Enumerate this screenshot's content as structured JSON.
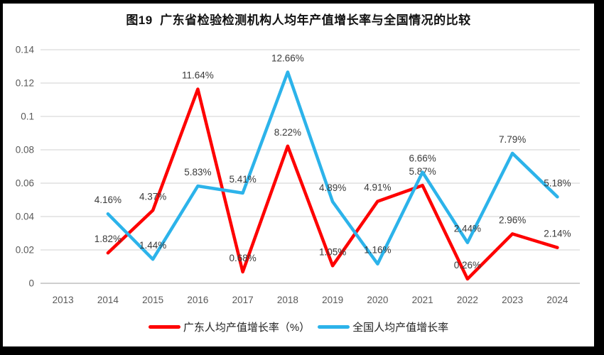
{
  "title": "图19  广东省检验检测机构人均年产值增长率与全国情况的比较",
  "chart_data": {
    "type": "line",
    "categories": [
      "2013",
      "2014",
      "2015",
      "2016",
      "2017",
      "2018",
      "2019",
      "2020",
      "2021",
      "2022",
      "2023",
      "2024"
    ],
    "ylim": [
      0,
      0.14
    ],
    "ytick_step": 0.02,
    "ytick_labels": [
      "0",
      "0.02",
      "0.04",
      "0.06",
      "0.08",
      "0.1",
      "0.12",
      "0.14"
    ],
    "grid": true,
    "legend_position": "bottom",
    "series": [
      {
        "name": "广东人均产值增长率（%）",
        "color": "#FE0000",
        "values": [
          null,
          0.0182,
          0.0437,
          0.1164,
          0.0068,
          0.0822,
          0.0105,
          0.0491,
          0.0587,
          0.0026,
          0.0296,
          0.0214
        ],
        "labels": [
          null,
          "1.82%",
          "4.37%",
          "11.64%",
          "0.68%",
          "8.22%",
          "1.05%",
          "4.91%",
          "5.87%",
          "0.26%",
          "2.96%",
          "2.14%"
        ]
      },
      {
        "name": "全国人均产值增长率",
        "color": "#2CB3EA",
        "values": [
          null,
          0.0416,
          0.0144,
          0.0583,
          0.0541,
          0.1266,
          0.0489,
          0.0116,
          0.0666,
          0.0244,
          0.0779,
          0.0518
        ],
        "labels": [
          null,
          "4.16%",
          "1.44%",
          "5.83%",
          "5.41%",
          "12.66%",
          "4.89%",
          "1.16%",
          "6.66%",
          "2.44%",
          "7.79%",
          "5.18%"
        ]
      }
    ]
  },
  "colors": {
    "gridline": "#D9D9D9",
    "axis_line": "#BFBFBF",
    "tick_text": "#595959",
    "data_label_text": "#3A3A3A"
  }
}
